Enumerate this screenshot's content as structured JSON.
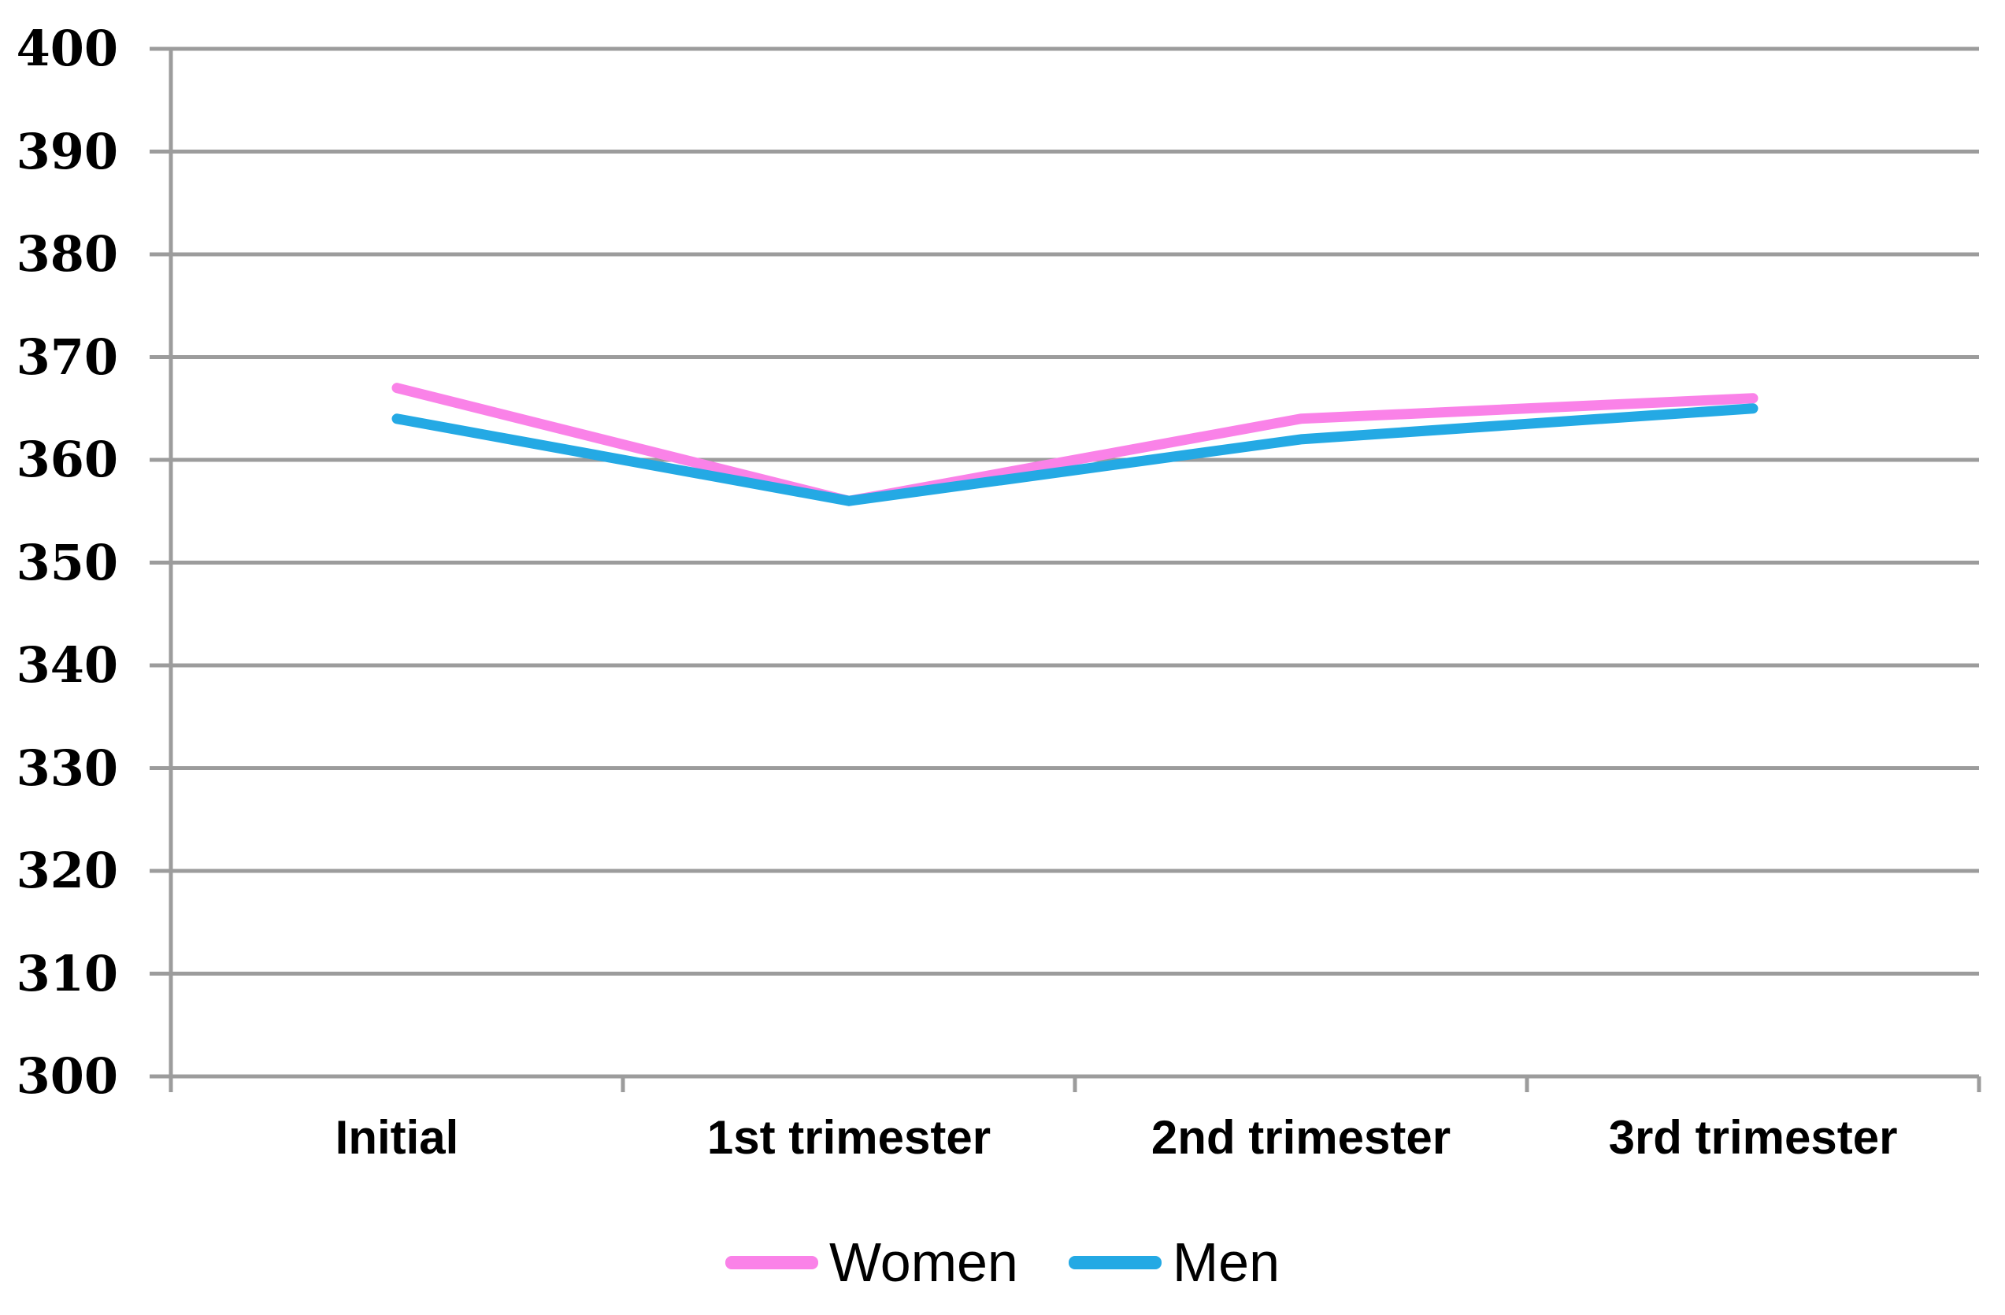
{
  "chart_data": {
    "type": "line",
    "categories": [
      "Initial",
      "1st trimester",
      "2nd trimester",
      "3rd trimester"
    ],
    "series": [
      {
        "name": "Women",
        "values": [
          367,
          356,
          364,
          366
        ],
        "color": "#FA82E8"
      },
      {
        "name": "Men",
        "values": [
          364,
          356,
          362,
          365
        ],
        "color": "#24A9E4"
      }
    ],
    "title": "",
    "xlabel": "",
    "ylabel": "",
    "ylim": [
      300,
      400
    ],
    "yticks": [
      300,
      310,
      320,
      330,
      340,
      350,
      360,
      370,
      380,
      390,
      400
    ],
    "grid": "horizontal",
    "legend_position": "bottom",
    "colors": {
      "gridline": "#9C9C9C",
      "axis_text": "#000000",
      "background": "#FFFFFF"
    }
  }
}
